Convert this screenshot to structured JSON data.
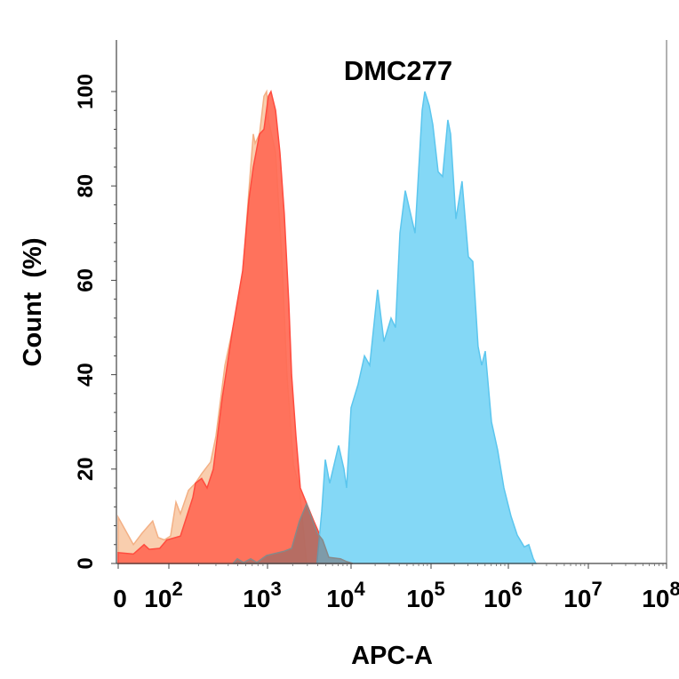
{
  "chart_data": {
    "type": "area",
    "title": "DMC277",
    "xlabel": "APC-A",
    "ylabel": "Count  (%)",
    "x_scale": "biexponential-log",
    "xlim": [
      0,
      100000000
    ],
    "ylim": [
      0,
      100
    ],
    "x_ticks": [
      {
        "value": 0,
        "base": "0",
        "exp": ""
      },
      {
        "value": 100,
        "base": "10",
        "exp": "2"
      },
      {
        "value": 1000,
        "base": "10",
        "exp": "3"
      },
      {
        "value": 10000,
        "base": "10",
        "exp": "4"
      },
      {
        "value": 100000,
        "base": "10",
        "exp": "5"
      },
      {
        "value": 1000000,
        "base": "10",
        "exp": "6"
      },
      {
        "value": 10000000,
        "base": "10",
        "exp": "7"
      },
      {
        "value": 100000000,
        "base": "10",
        "exp": "8"
      }
    ],
    "y_ticks": [
      0,
      20,
      40,
      60,
      80,
      100
    ],
    "grid": false,
    "series": [
      {
        "color": "#F5AE78",
        "opacity": 0.6,
        "stroke": "#F3B085",
        "points": [
          [
            0,
            9.8
          ],
          [
            30,
            4
          ],
          [
            47,
            6.4
          ],
          [
            68,
            9
          ],
          [
            79,
            5.5
          ],
          [
            91,
            5
          ],
          [
            104,
            5.8
          ],
          [
            118,
            13
          ],
          [
            131,
            10.5
          ],
          [
            158,
            15.5
          ],
          [
            186,
            17
          ],
          [
            215,
            19
          ],
          [
            265,
            21.5
          ],
          [
            300,
            27
          ],
          [
            370,
            42
          ],
          [
            446,
            50
          ],
          [
            548,
            59
          ],
          [
            675,
            84
          ],
          [
            718,
            91
          ],
          [
            748,
            89
          ],
          [
            830,
            91
          ],
          [
            921,
            99
          ],
          [
            980,
            100
          ],
          [
            1025,
            94
          ],
          [
            1250,
            87
          ],
          [
            1480,
            65
          ],
          [
            1710,
            40
          ],
          [
            2040,
            21
          ],
          [
            2410,
            16
          ],
          [
            2940,
            0
          ]
        ]
      },
      {
        "color": "#FF6A55",
        "opacity": 0.92,
        "stroke": "#FF4B3E",
        "points": [
          [
            0,
            2.3
          ],
          [
            30,
            2
          ],
          [
            51,
            4
          ],
          [
            61,
            3
          ],
          [
            82,
            3.2
          ],
          [
            96,
            5
          ],
          [
            131,
            5.8
          ],
          [
            175,
            14
          ],
          [
            186,
            17
          ],
          [
            215,
            18
          ],
          [
            244,
            16
          ],
          [
            282,
            20
          ],
          [
            347,
            35
          ],
          [
            446,
            50
          ],
          [
            560,
            62
          ],
          [
            647,
            77
          ],
          [
            718,
            84
          ],
          [
            830,
            91
          ],
          [
            921,
            92
          ],
          [
            1025,
            99
          ],
          [
            1100,
            100
          ],
          [
            1250,
            96
          ],
          [
            1410,
            87
          ],
          [
            1590,
            74
          ],
          [
            1800,
            55
          ],
          [
            1940,
            40
          ],
          [
            2190,
            27
          ],
          [
            2470,
            16
          ],
          [
            3570,
            9
          ],
          [
            5040,
            3
          ],
          [
            6920,
            0.4
          ],
          [
            10000,
            0
          ],
          [
            20000,
            0
          ],
          [
            22000,
            1
          ],
          [
            25000,
            0
          ],
          [
            45000,
            0
          ],
          [
            50000,
            1.5
          ],
          [
            56000,
            0
          ],
          [
            100000,
            0
          ],
          [
            110000,
            1
          ],
          [
            120000,
            0
          ],
          [
            170000,
            0
          ],
          [
            185000,
            1.2
          ],
          [
            200000,
            0
          ]
        ]
      },
      {
        "color": "#84D8F6",
        "opacity": 1,
        "stroke": "#5CC6EE",
        "points": [
          [
            3900,
            0
          ],
          [
            4460,
            11
          ],
          [
            4910,
            22
          ],
          [
            5560,
            17
          ],
          [
            7100,
            25
          ],
          [
            8220,
            20
          ],
          [
            8850,
            16
          ],
          [
            10000,
            33
          ],
          [
            12270,
            38
          ],
          [
            14700,
            44
          ],
          [
            17100,
            42
          ],
          [
            21500,
            58
          ],
          [
            25800,
            47
          ],
          [
            31600,
            52
          ],
          [
            35900,
            50
          ],
          [
            40800,
            70
          ],
          [
            47600,
            79
          ],
          [
            63100,
            70
          ],
          [
            77400,
            96
          ],
          [
            83600,
            100
          ],
          [
            95000,
            97
          ],
          [
            105500,
            93
          ],
          [
            123600,
            83
          ],
          [
            141000,
            82
          ],
          [
            165000,
            94
          ],
          [
            179000,
            91
          ],
          [
            210000,
            73
          ],
          [
            252000,
            81
          ],
          [
            304000,
            65
          ],
          [
            347000,
            64
          ],
          [
            406000,
            46
          ],
          [
            452000,
            42
          ],
          [
            502000,
            45
          ],
          [
            605000,
            30
          ],
          [
            728000,
            24
          ],
          [
            877000,
            16
          ],
          [
            1080000,
            10
          ],
          [
            1290000,
            6
          ],
          [
            1580000,
            3.5
          ],
          [
            1800000,
            4
          ],
          [
            2050000,
            1
          ],
          [
            2210000,
            0
          ]
        ]
      },
      {
        "color": "#7A6A6A",
        "opacity": 0.55,
        "stroke": "#888888",
        "points": [
          [
            446,
            0
          ],
          [
            494,
            1
          ],
          [
            571,
            0.2
          ],
          [
            675,
            1
          ],
          [
            780,
            0.2
          ],
          [
            980,
            1.7
          ],
          [
            1590,
            2.6
          ],
          [
            1940,
            3.2
          ],
          [
            2410,
            9
          ],
          [
            2940,
            12.6
          ],
          [
            3320,
            10
          ],
          [
            3940,
            6.4
          ],
          [
            4570,
            5
          ],
          [
            5420,
            1.3
          ],
          [
            7450,
            1
          ],
          [
            8850,
            0.4
          ],
          [
            10500,
            0
          ]
        ]
      }
    ]
  }
}
